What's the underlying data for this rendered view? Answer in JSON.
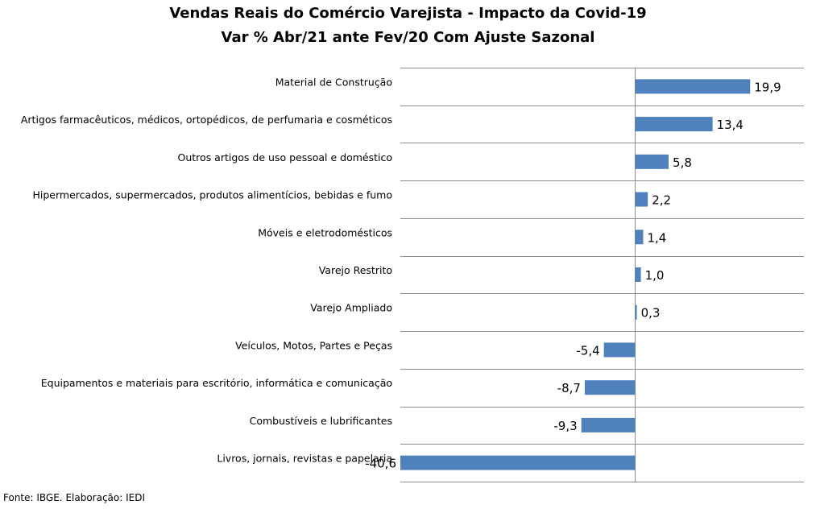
{
  "chart_data": {
    "type": "bar",
    "orientation": "horizontal",
    "title": "Vendas Reais do Comércio Varejista - Impacto da Covid-19",
    "subtitle": "Var % Abr/21 ante Fev/20 Com Ajuste Sazonal",
    "categories": [
      "Material de Construção",
      "Artigos farmacêuticos, médicos, ortopédicos, de perfumaria e cosméticos",
      "Outros artigos de uso pessoal e doméstico",
      "Hipermercados, supermercados, produtos alimentícios, bebidas e fumo",
      "Móveis e eletrodomésticos",
      "Varejo Restrito",
      "Varejo Ampliado",
      "Veículos, Motos, Partes e Peças",
      "Equipamentos e materiais para escritório, informática e comunicação",
      "Combustíveis e lubrificantes",
      "Livros, jornais, revistas e papelaria"
    ],
    "values": [
      19.9,
      13.4,
      5.8,
      2.2,
      1.4,
      1.0,
      0.3,
      -5.4,
      -8.7,
      -9.3,
      -40.6
    ],
    "value_labels": [
      "19,9",
      "13,4",
      "5,8",
      "2,2",
      "1,4",
      "1,0",
      "0,3",
      "-5,4",
      "-8,7",
      "-9,3",
      "-40,6"
    ],
    "xlim": [
      -40.6,
      29.2
    ],
    "bar_color": "#4f81bd",
    "grid": true,
    "source": "Fonte: IBGE. Elaboração: IEDI"
  }
}
